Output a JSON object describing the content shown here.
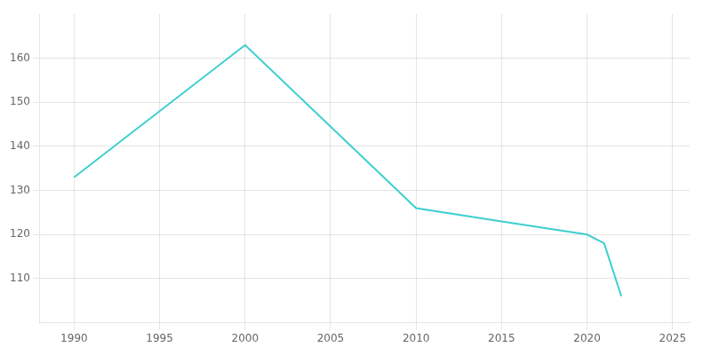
{
  "chart_data": {
    "type": "line",
    "x": [
      1990,
      2000,
      2010,
      2015,
      2020,
      2021,
      2022
    ],
    "values": [
      133,
      163,
      126,
      123,
      120,
      118,
      106
    ],
    "color": "#3ECFCF",
    "xlim": [
      1988,
      2026
    ],
    "ylim": [
      100,
      170
    ],
    "xticks": [
      1990,
      1995,
      2000,
      2005,
      2010,
      2015,
      2020,
      2025
    ],
    "yticks": [
      110,
      120,
      130,
      140,
      150,
      160
    ],
    "grid": true
  }
}
